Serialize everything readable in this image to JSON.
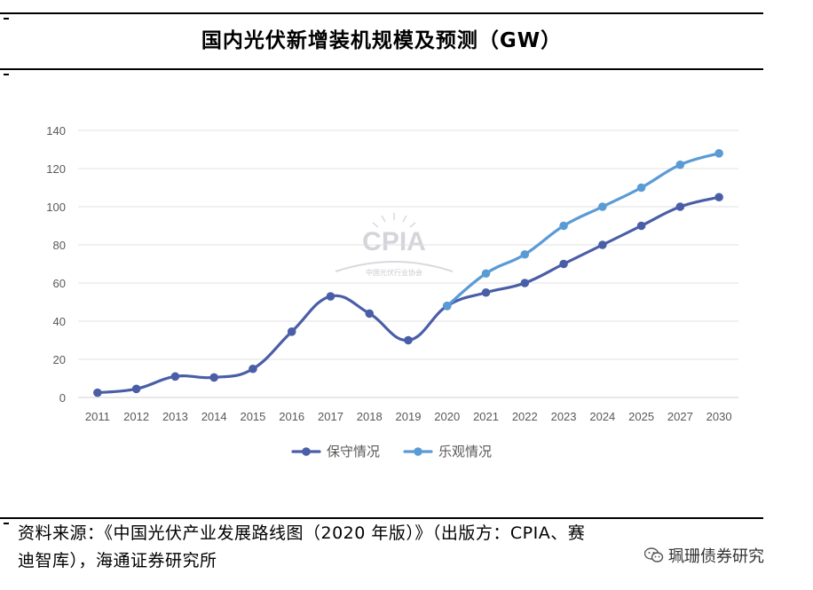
{
  "title": "国内光伏新增装机规模及预测（GW）",
  "chart_data": {
    "type": "line",
    "title": "国内光伏新增装机规模及预测（GW）",
    "categories": [
      "2011",
      "2012",
      "2013",
      "2014",
      "2015",
      "2016",
      "2017",
      "2018",
      "2019",
      "2020",
      "2021",
      "2022",
      "2023",
      "2024",
      "2025",
      "2027",
      "2030"
    ],
    "series": [
      {
        "name": "保守情况",
        "color": "#4a5ea8",
        "values": [
          2.5,
          4.5,
          11,
          10.5,
          15,
          34.5,
          53,
          44,
          30,
          48,
          55,
          60,
          70,
          80,
          90,
          100,
          105
        ]
      },
      {
        "name": "乐观情况",
        "color": "#5b9bd5",
        "values": [
          null,
          null,
          null,
          null,
          null,
          null,
          null,
          null,
          null,
          48,
          65,
          75,
          90,
          100,
          110,
          122,
          128
        ]
      }
    ],
    "yticks": [
      "0",
      "20",
      "40",
      "60",
      "80",
      "100",
      "120",
      "140"
    ],
    "ylim": [
      0,
      140
    ],
    "xlabel": "",
    "ylabel": "",
    "grid": true,
    "legend_position": "bottom-center",
    "watermark": {
      "text": "CPIA",
      "subtext": "中国光伏行业协会"
    }
  },
  "source": {
    "line1": "资料来源：《中国光伏产业发展路线图（2020 年版）》（出版方：CPIA、赛",
    "line2": "迪智库），海通证券研究所"
  },
  "wechat": {
    "icon": "wechat-icon",
    "account": "珮珊债券研究"
  }
}
